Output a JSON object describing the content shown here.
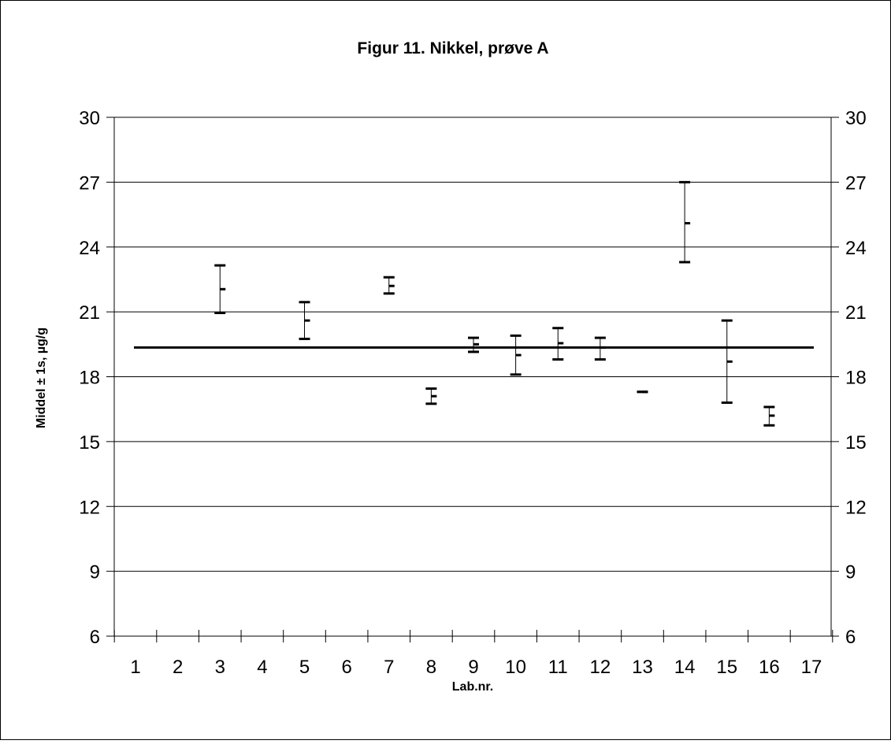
{
  "chart_data": {
    "type": "scatter",
    "title": "Figur 11. Nikkel, prøve A",
    "xlabel": "Lab.nr.",
    "ylabel": "Middel ± 1s, µg/g",
    "ylim": [
      6,
      30
    ],
    "yticks": [
      6,
      9,
      12,
      15,
      18,
      21,
      24,
      27,
      30
    ],
    "y2ticks": [
      6,
      9,
      12,
      15,
      18,
      21,
      24,
      27,
      30
    ],
    "categories": [
      "1",
      "2",
      "3",
      "4",
      "5",
      "6",
      "7",
      "8",
      "9",
      "10",
      "11",
      "12",
      "13",
      "14",
      "15",
      "16",
      "17"
    ],
    "grid": true,
    "reference_line": 19.35,
    "points": [
      {
        "lab": "3",
        "mean": 22.05,
        "low": 20.95,
        "high": 23.15
      },
      {
        "lab": "5",
        "mean": 20.6,
        "low": 19.75,
        "high": 21.45
      },
      {
        "lab": "7",
        "mean": 22.2,
        "low": 21.85,
        "high": 22.6
      },
      {
        "lab": "8",
        "mean": 17.1,
        "low": 16.75,
        "high": 17.45
      },
      {
        "lab": "9",
        "mean": 19.5,
        "low": 19.15,
        "high": 19.8
      },
      {
        "lab": "10",
        "mean": 19.0,
        "low": 18.1,
        "high": 19.9
      },
      {
        "lab": "11",
        "mean": 19.55,
        "low": 18.8,
        "high": 20.25
      },
      {
        "lab": "12",
        "mean": 19.35,
        "low": 18.8,
        "high": 19.8
      },
      {
        "lab": "13",
        "mean": 17.3,
        "low": 17.3,
        "high": 17.3
      },
      {
        "lab": "14",
        "mean": 25.1,
        "low": 23.3,
        "high": 27.0
      },
      {
        "lab": "15",
        "mean": 18.7,
        "low": 16.8,
        "high": 20.6
      },
      {
        "lab": "16",
        "mean": 16.2,
        "low": 15.75,
        "high": 16.6
      }
    ]
  }
}
